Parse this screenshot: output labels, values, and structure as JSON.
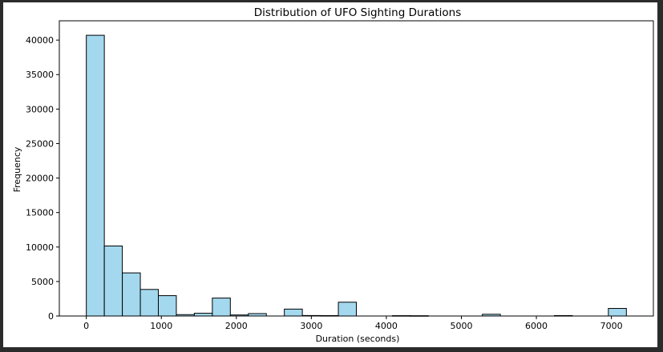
{
  "chart_data": {
    "type": "bar",
    "subtype": "histogram",
    "title": "Distribution of UFO Sighting Durations",
    "xlabel": "Duration (seconds)",
    "ylabel": "Frequency",
    "xlim": [
      -360,
      7560
    ],
    "ylim": [
      0,
      42800
    ],
    "x_ticks": [
      0,
      1000,
      2000,
      3000,
      4000,
      5000,
      6000,
      7000
    ],
    "y_ticks": [
      0,
      5000,
      10000,
      15000,
      20000,
      25000,
      30000,
      35000,
      40000
    ],
    "grid": false,
    "bar_color": "#a3d8ee",
    "edge_color": "#000000",
    "bin_width": 240,
    "bins": [
      {
        "start": 0,
        "end": 240,
        "count": 40700
      },
      {
        "start": 240,
        "end": 480,
        "count": 10150
      },
      {
        "start": 480,
        "end": 720,
        "count": 6250
      },
      {
        "start": 720,
        "end": 960,
        "count": 3850
      },
      {
        "start": 960,
        "end": 1200,
        "count": 2950
      },
      {
        "start": 1200,
        "end": 1440,
        "count": 200
      },
      {
        "start": 1440,
        "end": 1680,
        "count": 400
      },
      {
        "start": 1680,
        "end": 1920,
        "count": 2600
      },
      {
        "start": 1920,
        "end": 2160,
        "count": 150
      },
      {
        "start": 2160,
        "end": 2400,
        "count": 350
      },
      {
        "start": 2400,
        "end": 2640,
        "count": 0
      },
      {
        "start": 2640,
        "end": 2880,
        "count": 1000
      },
      {
        "start": 2880,
        "end": 3120,
        "count": 70
      },
      {
        "start": 3120,
        "end": 3360,
        "count": 60
      },
      {
        "start": 3360,
        "end": 3600,
        "count": 2000
      },
      {
        "start": 3600,
        "end": 3840,
        "count": 0
      },
      {
        "start": 3840,
        "end": 4080,
        "count": 0
      },
      {
        "start": 4080,
        "end": 4320,
        "count": 50
      },
      {
        "start": 4320,
        "end": 4560,
        "count": 40
      },
      {
        "start": 4560,
        "end": 4800,
        "count": 0
      },
      {
        "start": 4800,
        "end": 5040,
        "count": 0
      },
      {
        "start": 5040,
        "end": 5280,
        "count": 0
      },
      {
        "start": 5280,
        "end": 5520,
        "count": 250
      },
      {
        "start": 5520,
        "end": 5760,
        "count": 0
      },
      {
        "start": 5760,
        "end": 6000,
        "count": 0
      },
      {
        "start": 6000,
        "end": 6240,
        "count": 0
      },
      {
        "start": 6240,
        "end": 6480,
        "count": 60
      },
      {
        "start": 6480,
        "end": 6720,
        "count": 0
      },
      {
        "start": 6720,
        "end": 6960,
        "count": 0
      },
      {
        "start": 6960,
        "end": 7200,
        "count": 1100
      }
    ]
  }
}
